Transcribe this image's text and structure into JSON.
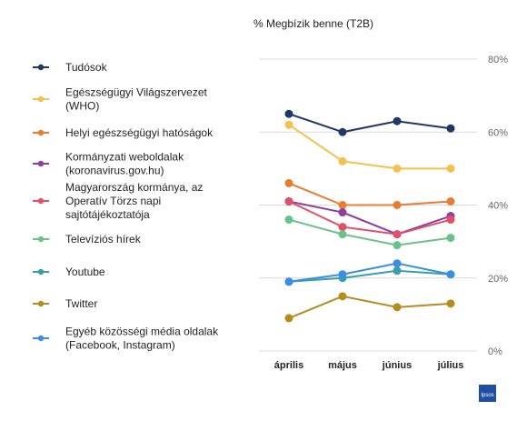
{
  "chart_data": {
    "type": "line",
    "title": "% Megbízik benne (T2B)",
    "categories": [
      "április",
      "május",
      "június",
      "július"
    ],
    "ylim": [
      0,
      80
    ],
    "yticks": [
      0,
      20,
      40,
      60,
      80
    ],
    "ytick_labels": [
      "0%",
      "20%",
      "40%",
      "60%",
      "80%"
    ],
    "grid": true,
    "legend_position": "left",
    "series": [
      {
        "name": [
          "Tudósok"
        ],
        "color": "#1f3864",
        "values": [
          65,
          60,
          63,
          61
        ]
      },
      {
        "name": [
          "Egészségügyi Világszervezet",
          "(WHO)"
        ],
        "color": "#f4c04e",
        "values": [
          62,
          52,
          50,
          50
        ]
      },
      {
        "name": [
          "Helyi egészségügyi hatóságok"
        ],
        "color": "#e97c30",
        "values": [
          46,
          40,
          40,
          41
        ]
      },
      {
        "name": [
          "Kormányzati weboldalak",
          "(koronavirus.gov.hu)"
        ],
        "color": "#8b3fa0",
        "values": [
          41,
          38,
          32,
          37
        ]
      },
      {
        "name": [
          "Magyarország kormánya, az",
          "Operatív Törzs napi",
          "sajtótájékoztatója"
        ],
        "color": "#e0506a",
        "values": [
          41,
          34,
          32,
          36
        ]
      },
      {
        "name": [
          "Televíziós hírek"
        ],
        "color": "#6ac28a",
        "values": [
          36,
          32,
          29,
          31
        ]
      },
      {
        "name": [
          "Youtube"
        ],
        "color": "#3a9ea8",
        "values": [
          19,
          20,
          22,
          21
        ]
      },
      {
        "name": [
          "Twitter"
        ],
        "color": "#b58c20",
        "values": [
          9,
          15,
          12,
          13
        ]
      },
      {
        "name": [
          "Egyéb közösségi média oldalak",
          "(Facebook, Instagram)"
        ],
        "color": "#3a8ee6",
        "values": [
          19,
          21,
          24,
          21
        ]
      }
    ]
  },
  "logo": {
    "text": "Ipsos",
    "color": "#1f4fa3"
  }
}
